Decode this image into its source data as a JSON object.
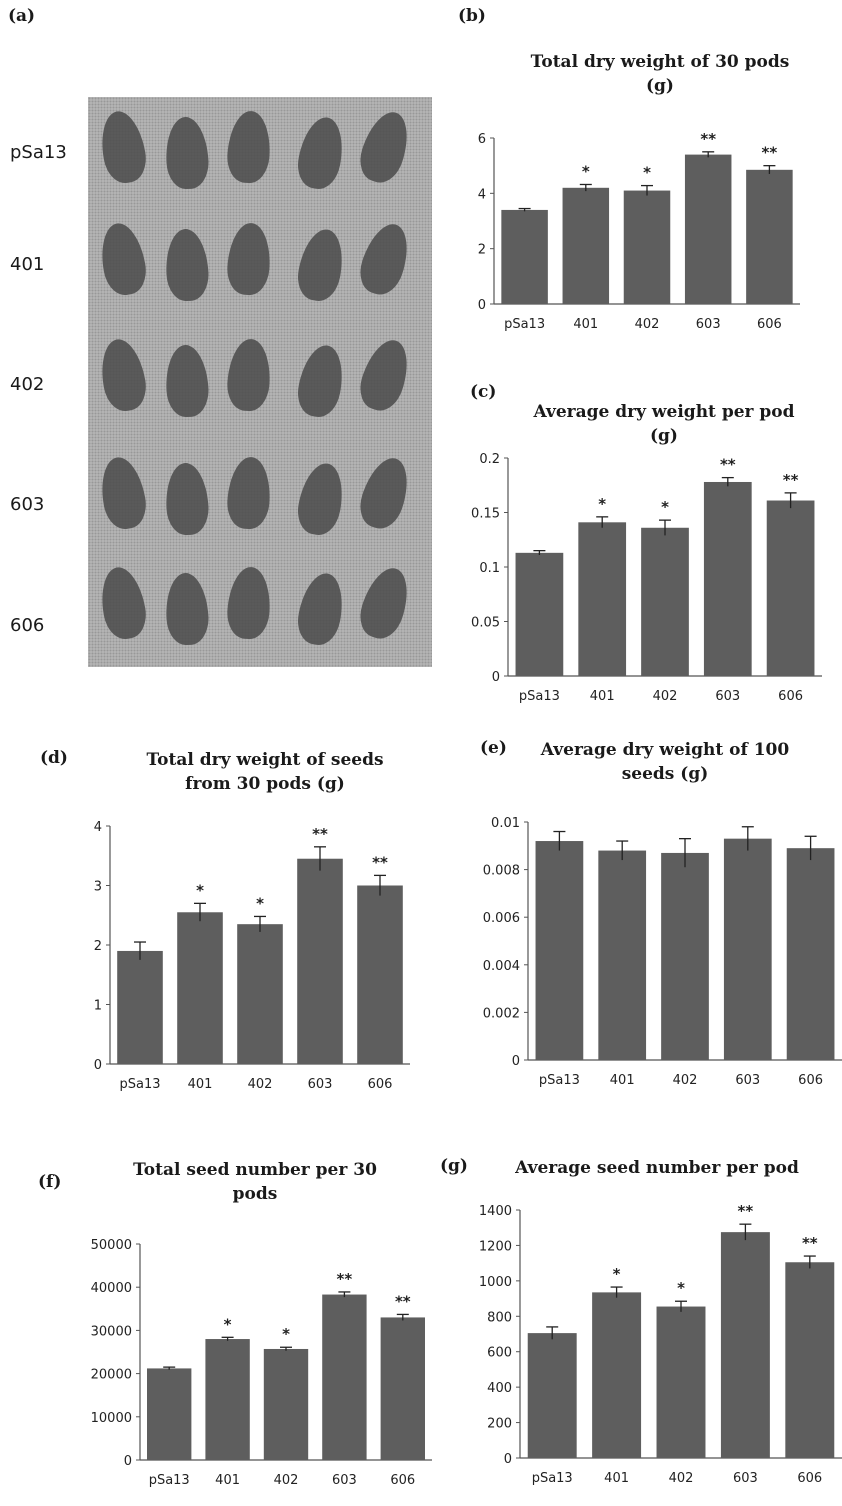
{
  "panel_letters": {
    "a": "(a)",
    "b": "(b)",
    "c": "(c)",
    "d": "(d)",
    "e": "(e)",
    "f": "(f)",
    "g": "(g)"
  },
  "photo": {
    "row_labels": [
      "pSa13",
      "401",
      "402",
      "603",
      "606"
    ],
    "pods_per_row": 5
  },
  "colors": {
    "bar": "#5e5e5e",
    "axis": "#555555",
    "photo_bg": "#b9b9b9"
  },
  "chart_data": [
    {
      "id": "b",
      "type": "bar",
      "title": "Total dry weight of 30 pods (g)",
      "title_lines": [
        "Total dry weight of 30 pods",
        "(g)"
      ],
      "categories": [
        "pSa13",
        "401",
        "402",
        "603",
        "606"
      ],
      "values": [
        3.4,
        4.2,
        4.1,
        5.4,
        4.85
      ],
      "errors": [
        0.05,
        0.12,
        0.18,
        0.1,
        0.15
      ],
      "significance": [
        "",
        "*",
        "*",
        "**",
        "**"
      ],
      "ylim": [
        0,
        6
      ],
      "yticks": [
        "0",
        "2",
        "4",
        "6"
      ],
      "ytick_values": [
        0,
        2,
        4,
        6
      ],
      "grid": false,
      "legend": "none"
    },
    {
      "id": "c",
      "type": "bar",
      "title": "Average dry weight per pod (g)",
      "title_lines": [
        "Average dry weight per pod",
        "(g)"
      ],
      "categories": [
        "pSa13",
        "401",
        "402",
        "603",
        "606"
      ],
      "values": [
        0.113,
        0.141,
        0.136,
        0.178,
        0.161
      ],
      "errors": [
        0.002,
        0.005,
        0.007,
        0.004,
        0.007
      ],
      "significance": [
        "",
        "*",
        "*",
        "**",
        "**"
      ],
      "ylim": [
        0,
        0.2
      ],
      "yticks": [
        "0",
        "0.05",
        "0.1",
        "0.15",
        "0.2"
      ],
      "ytick_values": [
        0,
        0.05,
        0.1,
        0.15,
        0.2
      ],
      "grid": false,
      "legend": "none"
    },
    {
      "id": "d",
      "type": "bar",
      "title": "Total dry weight of seeds from 30 pods (g)",
      "title_lines": [
        "Total dry weight  of seeds",
        "from 30 pods (g)"
      ],
      "categories": [
        "pSa13",
        "401",
        "402",
        "603",
        "606"
      ],
      "values": [
        1.9,
        2.55,
        2.35,
        3.45,
        3.0
      ],
      "errors": [
        0.15,
        0.15,
        0.13,
        0.2,
        0.17
      ],
      "significance": [
        "",
        "*",
        "*",
        "**",
        "**"
      ],
      "ylim": [
        0,
        4
      ],
      "yticks": [
        "0",
        "1",
        "2",
        "3",
        "4"
      ],
      "ytick_values": [
        0,
        1,
        2,
        3,
        4
      ],
      "grid": false,
      "legend": "none"
    },
    {
      "id": "e",
      "type": "bar",
      "title": "Average dry weight of 100 seeds (g)",
      "title_lines": [
        "Average dry weight of 100",
        "seeds (g)"
      ],
      "categories": [
        "pSa13",
        "401",
        "402",
        "603",
        "606"
      ],
      "values": [
        0.0092,
        0.0088,
        0.0087,
        0.0093,
        0.0089
      ],
      "errors": [
        0.0004,
        0.0004,
        0.0006,
        0.0005,
        0.0005
      ],
      "significance": [
        "",
        "",
        "",
        "",
        ""
      ],
      "ylim": [
        0,
        0.01
      ],
      "yticks": [
        "0",
        "0.002",
        "0.004",
        "0.006",
        "0.008",
        "0.01"
      ],
      "ytick_values": [
        0,
        0.002,
        0.004,
        0.006,
        0.008,
        0.01
      ],
      "grid": false,
      "legend": "none"
    },
    {
      "id": "f",
      "type": "bar",
      "title": "Total seed number per 30 pods",
      "title_lines": [
        "Total seed number per 30",
        "pods"
      ],
      "categories": [
        "pSa13",
        "401",
        "402",
        "603",
        "606"
      ],
      "values": [
        21200,
        28000,
        25700,
        38300,
        33000
      ],
      "errors": [
        300,
        400,
        400,
        600,
        700
      ],
      "significance": [
        "",
        "*",
        "*",
        "**",
        "**"
      ],
      "ylim": [
        0,
        50000
      ],
      "yticks": [
        "0",
        "10000",
        "20000",
        "30000",
        "40000",
        "50000"
      ],
      "ytick_values": [
        0,
        10000,
        20000,
        30000,
        40000,
        50000
      ],
      "grid": false,
      "legend": "none"
    },
    {
      "id": "g",
      "type": "bar",
      "title": "Average seed number per pod",
      "title_lines": [
        "Average seed number per pod"
      ],
      "categories": [
        "pSa13",
        "401",
        "402",
        "603",
        "606"
      ],
      "values": [
        705,
        935,
        855,
        1275,
        1105
      ],
      "errors": [
        35,
        30,
        30,
        45,
        35
      ],
      "significance": [
        "",
        "*",
        "*",
        "**",
        "**"
      ],
      "ylim": [
        0,
        1400
      ],
      "yticks": [
        "0",
        "200",
        "400",
        "600",
        "800",
        "1000",
        "1200",
        "1400"
      ],
      "ytick_values": [
        0,
        200,
        400,
        600,
        800,
        1000,
        1200,
        1400
      ],
      "grid": false,
      "legend": "none"
    }
  ]
}
